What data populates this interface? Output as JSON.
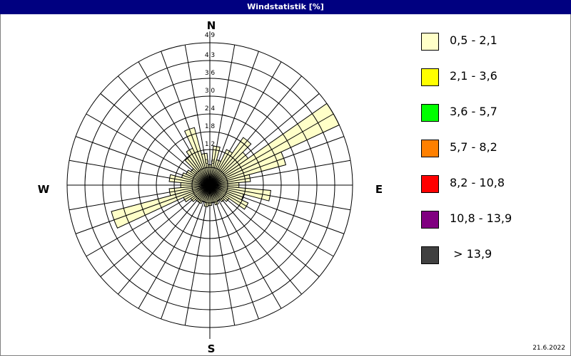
{
  "window": {
    "title": "Windstatistik [%]"
  },
  "date": "21.6.2022",
  "chart_data": {
    "type": "wind-rose",
    "title": "Windstatistik [%]",
    "unit": "%",
    "compass_labels": {
      "N": "N",
      "E": "E",
      "S": "S",
      "W": "W"
    },
    "ring_labels": [
      "0,6",
      "1,2",
      "1,8",
      "2,4",
      "3,0",
      "3,6",
      "4,3",
      "4,9"
    ],
    "rmax": 4.9,
    "grid": true,
    "legend_placement": "right",
    "directions_deg": [
      0,
      10,
      20,
      30,
      40,
      50,
      60,
      70,
      80,
      90,
      100,
      110,
      120,
      130,
      140,
      150,
      160,
      170,
      180,
      190,
      200,
      210,
      220,
      230,
      240,
      250,
      260,
      270,
      280,
      290,
      300,
      310,
      320,
      330,
      340,
      350
    ],
    "series": [
      {
        "name": "0,5 - 2,1",
        "color": "#FFFFC8",
        "values": [
          0.7,
          1.35,
          0.9,
          1.35,
          2.0,
          1.6,
          4.9,
          2.7,
          1.4,
          1.0,
          2.1,
          1.2,
          1.45,
          0.8,
          0.7,
          0.6,
          0.7,
          0.6,
          0.7,
          0.75,
          0.6,
          0.7,
          0.7,
          0.8,
          1.0,
          3.5,
          1.4,
          1.0,
          1.4,
          1.0,
          0.9,
          0.8,
          1.2,
          1.4,
          2.05,
          1.1
        ]
      }
    ],
    "legend": [
      {
        "label": "0,5 - 2,1",
        "color": "#FFFFC8"
      },
      {
        "label": "2,1 - 3,6",
        "color": "#FFFF00"
      },
      {
        "label": "3,6 - 5,7",
        "color": "#00FF00"
      },
      {
        "label": "5,7 - 8,2",
        "color": "#FF8000"
      },
      {
        "label": "8,2 - 10,8",
        "color": "#FF0000"
      },
      {
        "label": "10,8 - 13,9",
        "color": "#800080"
      },
      {
        "label": " > 13,9",
        "color": "#404040"
      }
    ]
  }
}
